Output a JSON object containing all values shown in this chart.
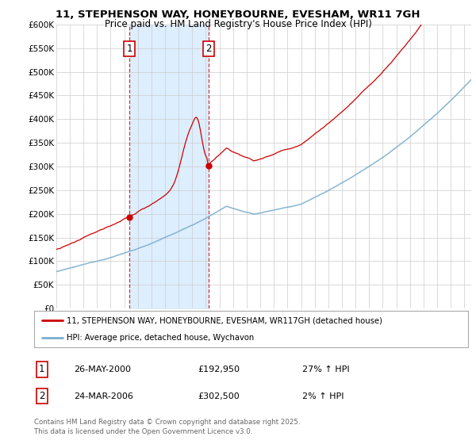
{
  "title1": "11, STEPHENSON WAY, HONEYBOURNE, EVESHAM, WR11 7GH",
  "title2": "Price paid vs. HM Land Registry's House Price Index (HPI)",
  "ylabel_ticks": [
    "£0",
    "£50K",
    "£100K",
    "£150K",
    "£200K",
    "£250K",
    "£300K",
    "£350K",
    "£400K",
    "£450K",
    "£500K",
    "£550K",
    "£600K"
  ],
  "ytick_vals": [
    0,
    50000,
    100000,
    150000,
    200000,
    250000,
    300000,
    350000,
    400000,
    450000,
    500000,
    550000,
    600000
  ],
  "xmin": 1995.0,
  "xmax": 2025.5,
  "ymin": 0,
  "ymax": 600000,
  "red_line_color": "#cc0000",
  "blue_line_color": "#7aadcf",
  "shaded_color": "#ddeeff",
  "grid_color": "#cccccc",
  "legend1": "11, STEPHENSON WAY, HONEYBOURNE, EVESHAM, WR117GH (detached house)",
  "legend2": "HPI: Average price, detached house, Wychavon",
  "sale1_t": 2000.375,
  "sale1_price": 192950,
  "sale2_t": 2006.208,
  "sale2_price": 302500,
  "marker1_date": "26-MAY-2000",
  "marker1_price": "£192,950",
  "marker1_hpi": "27% ↑ HPI",
  "marker2_date": "24-MAR-2006",
  "marker2_price": "£302,500",
  "marker2_hpi": "2% ↑ HPI",
  "footer": "Contains HM Land Registry data © Crown copyright and database right 2025.\nThis data is licensed under the Open Government Licence v3.0.",
  "bg_color": "#ffffff"
}
